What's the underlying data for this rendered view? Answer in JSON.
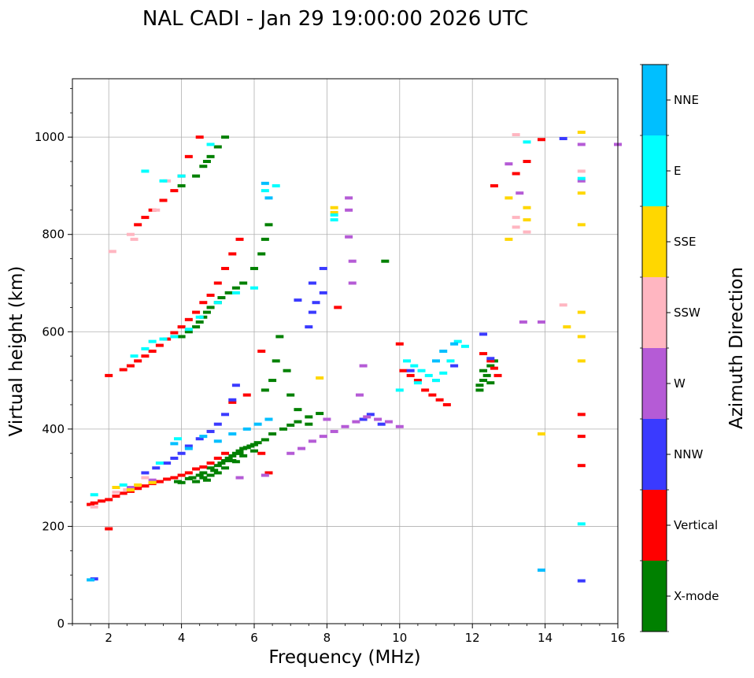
{
  "chart_data": {
    "type": "scatter",
    "title": "NAL CADI - Jan 29 19:00:00 2026 UTC",
    "xlabel": "Frequency (MHz)",
    "ylabel": "Virtual height (km)",
    "xlim": [
      1,
      16
    ],
    "ylim": [
      0,
      1120
    ],
    "xticks": [
      2,
      4,
      6,
      8,
      10,
      12,
      14,
      16
    ],
    "yticks": [
      0,
      200,
      400,
      600,
      800,
      1000
    ],
    "grid": true,
    "colorbar": {
      "label": "Azimuth Direction",
      "position": "right",
      "categories": [
        "X-mode",
        "Vertical",
        "NNW",
        "W",
        "SSW",
        "SSE",
        "E",
        "NNE"
      ],
      "colors": [
        "#008000",
        "#ff0000",
        "#3a3aff",
        "#b55bd6",
        "#ffb6c1",
        "#ffd700",
        "#00ffff",
        "#00bfff"
      ]
    },
    "series": [
      {
        "name": "X-mode",
        "points": [
          [
            4.3,
            300
          ],
          [
            4.5,
            305
          ],
          [
            4.6,
            310
          ],
          [
            4.7,
            295
          ],
          [
            4.8,
            320
          ],
          [
            4.9,
            315
          ],
          [
            5.0,
            325
          ],
          [
            5.1,
            330
          ],
          [
            5.2,
            335
          ],
          [
            5.3,
            340
          ],
          [
            5.4,
            345
          ],
          [
            5.5,
            350
          ],
          [
            5.6,
            355
          ],
          [
            5.7,
            360
          ],
          [
            5.8,
            362
          ],
          [
            5.9,
            365
          ],
          [
            6.0,
            368
          ],
          [
            6.1,
            372
          ],
          [
            6.3,
            378
          ],
          [
            6.5,
            390
          ],
          [
            6.8,
            400
          ],
          [
            7.0,
            408
          ],
          [
            7.2,
            415
          ],
          [
            7.5,
            425
          ],
          [
            7.8,
            432
          ],
          [
            4.0,
            290
          ],
          [
            4.2,
            298
          ],
          [
            3.9,
            292
          ],
          [
            4.4,
            292
          ],
          [
            4.6,
            300
          ],
          [
            4.8,
            305
          ],
          [
            5.0,
            310
          ],
          [
            5.2,
            320
          ],
          [
            5.5,
            333
          ],
          [
            5.7,
            345
          ],
          [
            6.0,
            355
          ],
          [
            4.5,
            620
          ],
          [
            4.6,
            630
          ],
          [
            4.7,
            640
          ],
          [
            4.8,
            650
          ],
          [
            5.0,
            660
          ],
          [
            5.1,
            670
          ],
          [
            5.3,
            680
          ],
          [
            5.5,
            690
          ],
          [
            5.7,
            700
          ],
          [
            6.0,
            730
          ],
          [
            6.2,
            760
          ],
          [
            6.3,
            790
          ],
          [
            6.4,
            820
          ],
          [
            4.4,
            610
          ],
          [
            4.2,
            600
          ],
          [
            4.0,
            590
          ],
          [
            6.3,
            480
          ],
          [
            6.5,
            500
          ],
          [
            6.6,
            540
          ],
          [
            6.7,
            590
          ],
          [
            6.9,
            520
          ],
          [
            7.0,
            470
          ],
          [
            7.2,
            440
          ],
          [
            7.5,
            410
          ],
          [
            5.6,
            350
          ],
          [
            5.4,
            335
          ],
          [
            4.0,
            900
          ],
          [
            4.4,
            920
          ],
          [
            4.6,
            940
          ],
          [
            4.8,
            960
          ],
          [
            5.0,
            980
          ],
          [
            5.2,
            1000
          ],
          [
            4.7,
            950
          ],
          [
            12.2,
            480
          ],
          [
            12.2,
            490
          ],
          [
            12.3,
            500
          ],
          [
            12.4,
            510
          ],
          [
            12.5,
            530
          ],
          [
            12.6,
            540
          ],
          [
            12.3,
            520
          ],
          [
            12.5,
            495
          ],
          [
            9.6,
            745
          ]
        ]
      },
      {
        "name": "Vertical",
        "points": [
          [
            1.5,
            245
          ],
          [
            1.6,
            248
          ],
          [
            1.8,
            252
          ],
          [
            2.0,
            255
          ],
          [
            2.2,
            262
          ],
          [
            2.4,
            268
          ],
          [
            2.6,
            272
          ],
          [
            2.8,
            278
          ],
          [
            3.0,
            283
          ],
          [
            3.2,
            288
          ],
          [
            3.4,
            292
          ],
          [
            3.6,
            297
          ],
          [
            3.8,
            300
          ],
          [
            4.0,
            305
          ],
          [
            4.2,
            310
          ],
          [
            4.4,
            318
          ],
          [
            4.6,
            322
          ],
          [
            4.8,
            330
          ],
          [
            5.0,
            340
          ],
          [
            5.2,
            350
          ],
          [
            2.0,
            510
          ],
          [
            2.4,
            522
          ],
          [
            2.6,
            530
          ],
          [
            2.8,
            540
          ],
          [
            3.0,
            550
          ],
          [
            3.2,
            560
          ],
          [
            3.4,
            572
          ],
          [
            3.6,
            585
          ],
          [
            3.8,
            598
          ],
          [
            4.0,
            610
          ],
          [
            4.2,
            625
          ],
          [
            4.4,
            640
          ],
          [
            4.6,
            660
          ],
          [
            4.8,
            675
          ],
          [
            5.0,
            700
          ],
          [
            5.2,
            730
          ],
          [
            5.4,
            760
          ],
          [
            5.6,
            790
          ],
          [
            2.8,
            820
          ],
          [
            3.0,
            835
          ],
          [
            3.2,
            850
          ],
          [
            3.5,
            870
          ],
          [
            3.8,
            890
          ],
          [
            4.0,
            920
          ],
          [
            4.2,
            960
          ],
          [
            4.5,
            1000
          ],
          [
            5.4,
            455
          ],
          [
            5.8,
            470
          ],
          [
            6.2,
            560
          ],
          [
            6.4,
            310
          ],
          [
            6.2,
            350
          ],
          [
            8.3,
            650
          ],
          [
            10.1,
            520
          ],
          [
            10.3,
            510
          ],
          [
            10.5,
            500
          ],
          [
            10.7,
            480
          ],
          [
            10.9,
            470
          ],
          [
            11.1,
            460
          ],
          [
            11.3,
            450
          ],
          [
            10.0,
            575
          ],
          [
            12.6,
            525
          ],
          [
            12.7,
            510
          ],
          [
            12.5,
            540
          ],
          [
            12.3,
            555
          ],
          [
            12.6,
            900
          ],
          [
            13.2,
            925
          ],
          [
            13.5,
            950
          ],
          [
            13.9,
            995
          ],
          [
            15.0,
            430
          ],
          [
            15.0,
            385
          ],
          [
            15.0,
            325
          ],
          [
            2.0,
            195
          ]
        ]
      },
      {
        "name": "NNW",
        "points": [
          [
            4.0,
            350
          ],
          [
            4.2,
            365
          ],
          [
            4.5,
            380
          ],
          [
            4.8,
            395
          ],
          [
            5.0,
            410
          ],
          [
            5.2,
            430
          ],
          [
            5.4,
            460
          ],
          [
            5.5,
            490
          ],
          [
            3.8,
            340
          ],
          [
            3.6,
            330
          ],
          [
            7.5,
            610
          ],
          [
            7.6,
            640
          ],
          [
            7.7,
            660
          ],
          [
            7.9,
            680
          ],
          [
            7.2,
            665
          ],
          [
            7.6,
            700
          ],
          [
            7.9,
            730
          ],
          [
            9.0,
            420
          ],
          [
            9.2,
            430
          ],
          [
            9.5,
            410
          ],
          [
            10.3,
            520
          ],
          [
            11.0,
            500
          ],
          [
            11.5,
            530
          ],
          [
            12.3,
            595
          ],
          [
            12.5,
            545
          ],
          [
            13.9,
            110
          ],
          [
            15.0,
            88
          ],
          [
            14.5,
            997
          ],
          [
            1.6,
            92
          ],
          [
            3.0,
            310
          ],
          [
            3.3,
            320
          ]
        ]
      },
      {
        "name": "W",
        "points": [
          [
            7.0,
            350
          ],
          [
            7.3,
            360
          ],
          [
            7.6,
            375
          ],
          [
            7.9,
            385
          ],
          [
            8.2,
            395
          ],
          [
            8.5,
            405
          ],
          [
            8.8,
            415
          ],
          [
            9.1,
            425
          ],
          [
            9.4,
            420
          ],
          [
            9.7,
            415
          ],
          [
            10.0,
            405
          ],
          [
            8.6,
            795
          ],
          [
            8.7,
            745
          ],
          [
            8.7,
            700
          ],
          [
            8.6,
            850
          ],
          [
            8.6,
            875
          ],
          [
            9.0,
            530
          ],
          [
            8.9,
            470
          ],
          [
            8.0,
            420
          ],
          [
            13.4,
            620
          ],
          [
            13.9,
            620
          ],
          [
            15.0,
            985
          ],
          [
            15.0,
            910
          ],
          [
            16.0,
            985
          ],
          [
            13.0,
            945
          ],
          [
            13.3,
            885
          ],
          [
            2.6,
            280
          ],
          [
            3.2,
            295
          ],
          [
            5.6,
            300
          ],
          [
            6.3,
            305
          ]
        ]
      },
      {
        "name": "SSW",
        "points": [
          [
            1.6,
            240
          ],
          [
            2.2,
            270
          ],
          [
            2.6,
            800
          ],
          [
            2.7,
            790
          ],
          [
            3.3,
            850
          ],
          [
            3.6,
            910
          ],
          [
            14.5,
            655
          ],
          [
            13.2,
            835
          ],
          [
            13.2,
            815
          ],
          [
            13.5,
            805
          ],
          [
            13.2,
            1005
          ],
          [
            15.0,
            930
          ],
          [
            2.1,
            765
          ],
          [
            2.5,
            275
          ],
          [
            3.0,
            300
          ]
        ]
      },
      {
        "name": "SSE",
        "points": [
          [
            2.6,
            275
          ],
          [
            2.8,
            285
          ],
          [
            3.2,
            290
          ],
          [
            8.2,
            855
          ],
          [
            8.2,
            845
          ],
          [
            13.0,
            790
          ],
          [
            13.0,
            875
          ],
          [
            13.5,
            855
          ],
          [
            13.5,
            830
          ],
          [
            13.9,
            390
          ],
          [
            14.6,
            610
          ],
          [
            15.0,
            640
          ],
          [
            15.0,
            590
          ],
          [
            15.0,
            540
          ],
          [
            15.0,
            820
          ],
          [
            15.0,
            885
          ],
          [
            15.0,
            1010
          ],
          [
            7.8,
            505
          ],
          [
            2.2,
            280
          ]
        ]
      },
      {
        "name": "E",
        "points": [
          [
            2.7,
            550
          ],
          [
            3.0,
            565
          ],
          [
            3.2,
            580
          ],
          [
            3.5,
            585
          ],
          [
            3.8,
            590
          ],
          [
            4.2,
            605
          ],
          [
            4.5,
            630
          ],
          [
            5.0,
            660
          ],
          [
            5.5,
            680
          ],
          [
            6.0,
            690
          ],
          [
            3.0,
            930
          ],
          [
            3.5,
            910
          ],
          [
            4.0,
            920
          ],
          [
            4.8,
            985
          ],
          [
            10.2,
            540
          ],
          [
            10.4,
            530
          ],
          [
            10.6,
            520
          ],
          [
            10.8,
            510
          ],
          [
            11.0,
            500
          ],
          [
            11.2,
            515
          ],
          [
            11.4,
            540
          ],
          [
            11.6,
            580
          ],
          [
            11.8,
            570
          ],
          [
            10.5,
            495
          ],
          [
            10.0,
            480
          ],
          [
            6.3,
            890
          ],
          [
            6.6,
            900
          ],
          [
            8.2,
            840
          ],
          [
            8.2,
            830
          ],
          [
            13.5,
            990
          ],
          [
            15.0,
            205
          ],
          [
            15.0,
            915
          ],
          [
            1.6,
            265
          ],
          [
            2.4,
            285
          ],
          [
            3.4,
            330
          ],
          [
            3.9,
            380
          ]
        ]
      },
      {
        "name": "NNE",
        "points": [
          [
            3.8,
            370
          ],
          [
            4.2,
            360
          ],
          [
            4.6,
            385
          ],
          [
            5.0,
            375
          ],
          [
            5.4,
            390
          ],
          [
            5.8,
            400
          ],
          [
            6.1,
            410
          ],
          [
            6.4,
            420
          ],
          [
            6.4,
            875
          ],
          [
            6.3,
            905
          ],
          [
            11.2,
            560
          ],
          [
            11.5,
            575
          ],
          [
            11.0,
            540
          ],
          [
            1.5,
            90
          ],
          [
            13.9,
            110
          ]
        ]
      }
    ]
  }
}
